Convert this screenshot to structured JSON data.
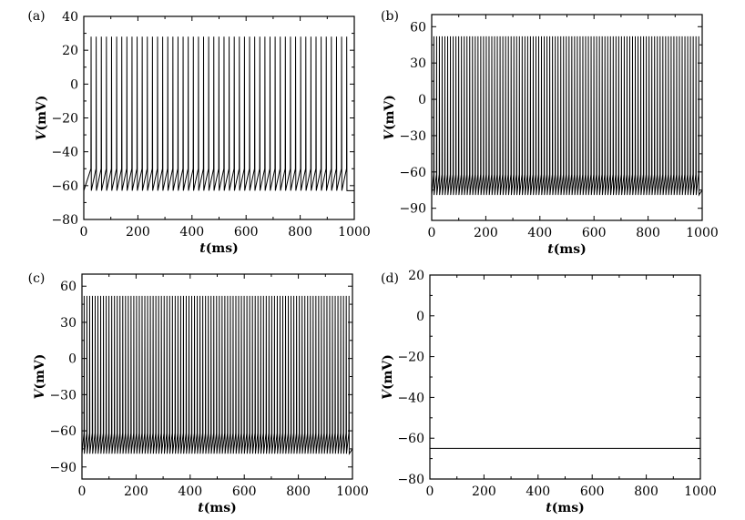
{
  "chart_data": [
    {
      "panel_label": "(a)",
      "type": "line",
      "xlabel": {
        "var": "t",
        "unit": "(ms)"
      },
      "ylabel": {
        "var": "V",
        "unit": "(mV)"
      },
      "xlim": [
        0,
        1000
      ],
      "ylim": [
        -80,
        40
      ],
      "xticks": [
        0,
        200,
        400,
        600,
        800,
        1000
      ],
      "yticks": [
        -80,
        -60,
        -40,
        -20,
        0,
        20,
        40
      ],
      "xtick_labels": [
        "0",
        "200",
        "400",
        "600",
        "800",
        "1000"
      ],
      "ytick_labels": [
        "−80",
        "−60",
        "−40",
        "−20",
        "0",
        "20",
        "40"
      ],
      "series": [
        {
          "pattern": "periodic spiking",
          "first_spike_ms": 27,
          "period_ms": 18.9,
          "spike_count": 51,
          "peak_mV": 28,
          "trough_mV": -63,
          "threshold_mV": -50,
          "end_mV": -63
        }
      ]
    },
    {
      "panel_label": "(b)",
      "type": "line",
      "xlabel": {
        "var": "t",
        "unit": "(ms)"
      },
      "ylabel": {
        "var": "V",
        "unit": "(mV)"
      },
      "xlim": [
        0,
        1000
      ],
      "ylim": [
        -100,
        70
      ],
      "xticks": [
        0,
        200,
        400,
        600,
        800,
        1000
      ],
      "yticks": [
        -90,
        -60,
        -30,
        0,
        30,
        60
      ],
      "xtick_labels": [
        "0",
        "200",
        "400",
        "600",
        "800",
        "1000"
      ],
      "ytick_labels": [
        "−90",
        "−60",
        "−30",
        "0",
        "30",
        "60"
      ],
      "series": [
        {
          "pattern": "periodic spiking",
          "first_spike_ms": 8,
          "period_ms": 10.2,
          "spike_count": 97,
          "peak_mV": 52,
          "trough_mV": -79,
          "threshold_mV": -62,
          "end_mV": -75
        }
      ]
    },
    {
      "panel_label": "(c)",
      "type": "line",
      "xlabel": {
        "var": "t",
        "unit": "(ms)"
      },
      "ylabel": {
        "var": "V",
        "unit": "(mV)"
      },
      "xlim": [
        0,
        1000
      ],
      "ylim": [
        -100,
        70
      ],
      "xticks": [
        0,
        200,
        400,
        600,
        800,
        1000
      ],
      "yticks": [
        -90,
        -60,
        -30,
        0,
        30,
        60
      ],
      "xtick_labels": [
        "0",
        "200",
        "400",
        "600",
        "800",
        "1000"
      ],
      "ytick_labels": [
        "−90",
        "−60",
        "−30",
        "0",
        "30",
        "60"
      ],
      "series": [
        {
          "pattern": "periodic spiking",
          "first_spike_ms": 8,
          "period_ms": 10.2,
          "spike_count": 97,
          "peak_mV": 52,
          "trough_mV": -79,
          "threshold_mV": -62,
          "end_mV": -75
        }
      ]
    },
    {
      "panel_label": "(d)",
      "type": "line",
      "xlabel": {
        "var": "t",
        "unit": "(ms)"
      },
      "ylabel": {
        "var": "V",
        "unit": "(mV)"
      },
      "xlim": [
        0,
        1000
      ],
      "ylim": [
        -80,
        20
      ],
      "xticks": [
        0,
        200,
        400,
        600,
        800,
        1000
      ],
      "yticks": [
        -80,
        -60,
        -40,
        -20,
        0,
        20
      ],
      "xtick_labels": [
        "0",
        "200",
        "400",
        "600",
        "800",
        "1000"
      ],
      "ytick_labels": [
        "−80",
        "−60",
        "−40",
        "−20",
        "0",
        "20"
      ],
      "series": [
        {
          "pattern": "constant",
          "value_mV": -65
        }
      ]
    }
  ]
}
